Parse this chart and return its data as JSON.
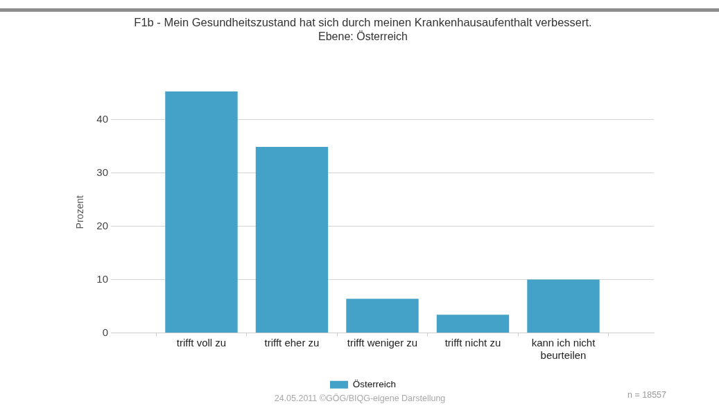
{
  "chart_data": {
    "type": "bar",
    "title": "F1b - Mein Gesundheitszustand hat sich durch meinen Krankenhausaufenthalt verbessert.",
    "subtitle": "Ebene: Österreich",
    "ylabel": "Prozent",
    "categories": [
      "trifft voll zu",
      "trifft eher zu",
      "trifft weniger zu",
      "trifft nicht zu",
      "kann ich nicht beurteilen"
    ],
    "series": [
      {
        "name": "Österreich",
        "color": "#44a1c7",
        "values": [
          45.3,
          34.9,
          6.4,
          3.4,
          10.0
        ]
      }
    ],
    "ylim": [
      0,
      45.3
    ],
    "yticks": [
      0,
      10,
      20,
      30,
      40
    ],
    "grid": "y",
    "legend": "bottom",
    "annotations": [
      "24.05.2011 ©GÖG/BIQG-eigene Darstellung",
      "n = 18557"
    ]
  }
}
